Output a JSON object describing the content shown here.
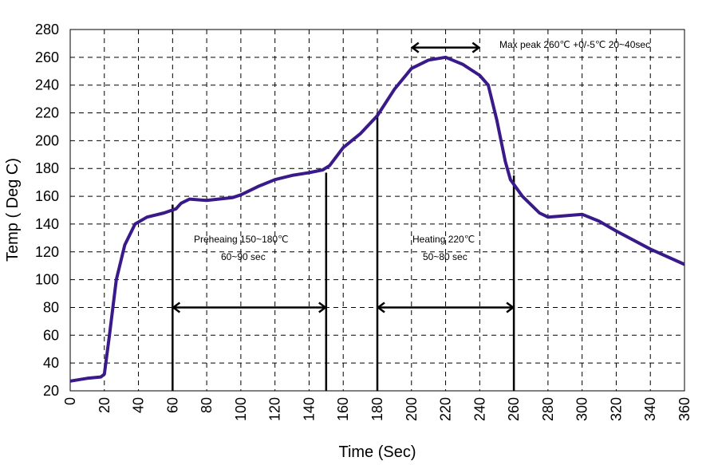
{
  "chart_data": {
    "type": "line",
    "title": "",
    "xlabel": "Time (Sec)",
    "ylabel": "Temp ( Deg C)",
    "xlim": [
      0,
      360
    ],
    "ylim": [
      20,
      280
    ],
    "xticks": [
      0,
      20,
      40,
      60,
      80,
      100,
      120,
      140,
      160,
      180,
      200,
      220,
      240,
      260,
      280,
      300,
      320,
      340,
      360
    ],
    "yticks": [
      20,
      40,
      60,
      80,
      100,
      120,
      140,
      160,
      180,
      200,
      220,
      240,
      260,
      280
    ],
    "grid": true,
    "line_color": "#3a1a8a",
    "series": [
      {
        "x": [
          0,
          10,
          18,
          20,
          23,
          27,
          32,
          38,
          45,
          55,
          62,
          65,
          70,
          80,
          95,
          100,
          110,
          120,
          130,
          140,
          148,
          152,
          160,
          170,
          180,
          190,
          200,
          210,
          220,
          230,
          240,
          245,
          250,
          255,
          258,
          265,
          275,
          280,
          290,
          300,
          310,
          320,
          340,
          360
        ],
        "y": [
          27,
          29,
          30,
          32,
          60,
          100,
          125,
          140,
          145,
          148,
          151,
          155,
          158,
          157,
          159,
          161,
          167,
          172,
          175,
          177,
          179,
          182,
          195,
          205,
          218,
          237,
          252,
          258,
          260,
          255,
          247,
          240,
          215,
          185,
          172,
          160,
          148,
          145,
          146,
          147,
          142,
          135,
          122,
          111
        ]
      }
    ],
    "markers": [
      {
        "x": 60,
        "y_top": 154
      },
      {
        "x": 150,
        "y_top": 177
      },
      {
        "x": 180,
        "y_top": 220
      },
      {
        "x": 260,
        "y_top": 175
      }
    ],
    "arrows": [
      {
        "x1": 60,
        "x2": 150,
        "y": 80
      },
      {
        "x1": 180,
        "x2": 260,
        "y": 80
      },
      {
        "x1": 200,
        "x2": 240,
        "y": 267
      }
    ],
    "annotations": {
      "preheat_line1": "Preheaing 150~180℃",
      "preheat_line2": "60~90 sec",
      "heating_line1": "Heating 220℃",
      "heating_line2": "50~80 sec",
      "max_peak": "Max peak 260℃ +0/-5℃  20~40sec"
    }
  }
}
